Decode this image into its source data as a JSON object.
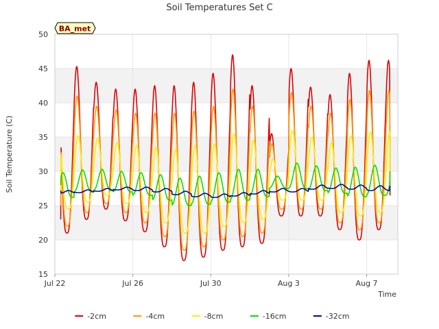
{
  "chart_data": {
    "type": "line",
    "title": "Soil Temperatures Set C",
    "xlabel": "Time",
    "ylabel": "Soil Temperature (C)",
    "station_badge": "BA_met",
    "xlim": [
      0,
      17.6
    ],
    "ylim": [
      15,
      50
    ],
    "yticks": [
      15,
      20,
      25,
      30,
      35,
      40,
      45,
      50
    ],
    "xticks": [
      {
        "day": 0,
        "label": "Jul 22"
      },
      {
        "day": 4,
        "label": "Jul 26"
      },
      {
        "day": 8,
        "label": "Jul 30"
      },
      {
        "day": 12,
        "label": "Aug 3"
      },
      {
        "day": 16,
        "label": "Aug 7"
      }
    ],
    "shaded_bands": [
      [
        20,
        25
      ],
      [
        30,
        35
      ],
      [
        40,
        45
      ]
    ],
    "colors": {
      "band": "#f2f2f2",
      "grid": "#dddddd",
      "badge_fill": "#ffffc0",
      "badge_text": "#8b0000"
    },
    "legend_position": "bottom",
    "series": [
      {
        "name": "-2cm",
        "color": "#dd0000",
        "daily_min": [
          21,
          23,
          24.5,
          22.8,
          21.2,
          19,
          17,
          17.5,
          18.5,
          19,
          19.5,
          23.5,
          23.5,
          23.5,
          21.5,
          20,
          21.5
        ],
        "daily_max": [
          45.5,
          45.3,
          43,
          42,
          42,
          42.5,
          42.5,
          43,
          44.3,
          47,
          42.5,
          35.5,
          45,
          42.3,
          41.2,
          44.3,
          46.2
        ],
        "phase": 0.62,
        "start_value": 23,
        "end_value": 26.5
      },
      {
        "name": "-4cm",
        "color": "#ff9900",
        "daily_min": [
          22,
          24,
          25.3,
          24,
          22.5,
          20.5,
          18.5,
          19,
          20,
          20.5,
          21,
          24.5,
          24.5,
          24.5,
          22.5,
          21.5,
          22.5
        ],
        "daily_max": [
          40.5,
          41,
          39.5,
          39,
          38.5,
          38.5,
          38.5,
          38.8,
          39.5,
          42,
          39.5,
          34,
          41.5,
          39.5,
          38.5,
          40.5,
          41.8
        ],
        "phase": 0.64,
        "start_value": 25,
        "end_value": 27.5
      },
      {
        "name": "-8cm",
        "color": "#ffee00",
        "daily_min": [
          24.5,
          25.5,
          26.5,
          25.3,
          24,
          22.5,
          21,
          21,
          22,
          22.5,
          23,
          25.8,
          25.8,
          25.8,
          24,
          23.5,
          24
        ],
        "daily_max": [
          35,
          35.2,
          34.8,
          34.2,
          33.8,
          33.5,
          33.2,
          33.8,
          34,
          35.5,
          34.5,
          31.8,
          36,
          35,
          34.2,
          35.2,
          35.8
        ],
        "phase": 0.69,
        "start_value": 27,
        "end_value": 28.5
      },
      {
        "name": "-16cm",
        "color": "#00dd00",
        "daily_min": [
          26.2,
          27,
          27.2,
          27,
          26.5,
          25.8,
          25,
          25.2,
          25.5,
          25.8,
          26.3,
          27.5,
          27.5,
          27.2,
          26.8,
          26.3,
          26.5
        ],
        "daily_max": [
          29.8,
          30.2,
          30.3,
          30,
          29.8,
          29.5,
          29,
          29.3,
          29.8,
          30.3,
          30.3,
          29.3,
          31.2,
          30.8,
          30.5,
          30.6,
          30.9
        ],
        "phase": 0.92,
        "start_value": 28,
        "end_value": 30
      },
      {
        "name": "-32cm",
        "color": "#0000bb",
        "daily_min": [
          26.8,
          26.9,
          27.1,
          27.3,
          27.2,
          27,
          26.6,
          26.3,
          26.2,
          26.4,
          26.7,
          27,
          27,
          27.4,
          27.5,
          27.4,
          27.2
        ],
        "daily_max": [
          27.2,
          27.3,
          27.5,
          27.7,
          27.7,
          27.5,
          27.1,
          26.8,
          26.7,
          26.9,
          27.2,
          27.5,
          27.5,
          28,
          28.1,
          28,
          27.9
        ],
        "phase": 0.2,
        "start_value": 27.2,
        "end_value": 27.9
      }
    ]
  }
}
